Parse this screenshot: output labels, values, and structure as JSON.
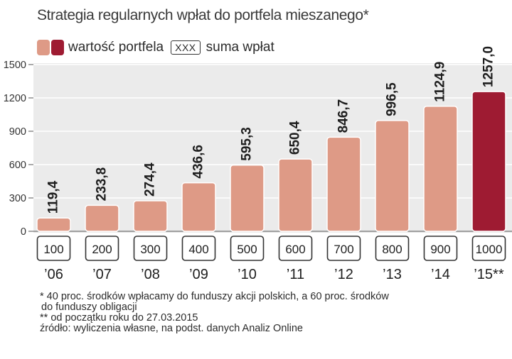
{
  "title": "Strategia regularnych wpłat do portfela mieszanego*",
  "legend": {
    "portfolio_label": "wartość portfela",
    "box_sample": "XXX",
    "sum_label": "suma wpłat"
  },
  "colors": {
    "bar": "#de9a86",
    "bar_highlight": "#9e1b32",
    "plot_bg": "#ebebeb"
  },
  "chart_data": {
    "type": "bar",
    "title": "Strategia regularnych wpłat do portfela mieszanego*",
    "categories": [
      "’06",
      "’07",
      "’08",
      "’09",
      "’10",
      "’11",
      "’12",
      "’13",
      "’14",
      "’15**"
    ],
    "series": [
      {
        "name": "wartość portfela",
        "values": [
          119.4,
          233.8,
          274.4,
          436.6,
          595.3,
          650.4,
          846.7,
          996.5,
          1124.9,
          1257.0
        ]
      }
    ],
    "value_labels": [
      "119,4",
      "233,8",
      "274,4",
      "436,6",
      "595,3",
      "650,4",
      "846,7",
      "996,5",
      "1124,9",
      "1257,0"
    ],
    "suma_wplat": [
      "100",
      "200",
      "300",
      "400",
      "500",
      "600",
      "700",
      "800",
      "900",
      "1000"
    ],
    "yticks": [
      0,
      300,
      600,
      900,
      1200,
      1500
    ],
    "ylim": [
      0,
      1500
    ],
    "highlight_index": 9,
    "xlabel": "",
    "ylabel": ""
  },
  "notes": [
    "* 40 proc. środków wpłacamy do funduszy akcji polskich, a 60 proc. środków",
    "  do funduszy obligacji",
    "** od początku roku do 27.03.2015",
    "źródło: wyliczenia własne, na podst. danych Analiz Online"
  ]
}
